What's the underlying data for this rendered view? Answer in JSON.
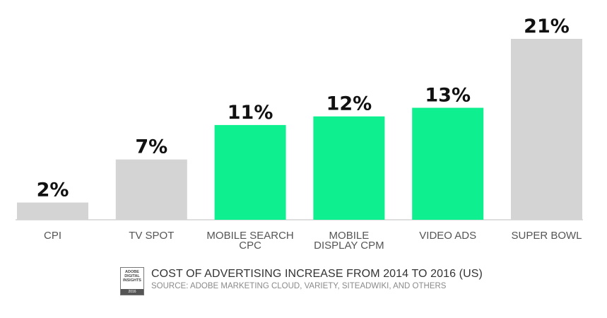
{
  "chart_data": {
    "type": "bar",
    "categories": [
      [
        "CPI"
      ],
      [
        "TV SPOT"
      ],
      [
        "MOBILE SEARCH",
        "CPC"
      ],
      [
        "MOBILE",
        "DISPLAY CPM"
      ],
      [
        "VIDEO ADS"
      ],
      [
        "SUPER BOWL"
      ]
    ],
    "values": [
      2,
      7,
      11,
      12,
      13,
      21
    ],
    "value_labels": [
      "2%",
      "7%",
      "11%",
      "12%",
      "13%",
      "21%"
    ],
    "bar_colors": [
      "#d4d4d4",
      "#d4d4d4",
      "#0ef08f",
      "#0ef08f",
      "#0ef08f",
      "#d4d4d4"
    ],
    "ylim": [
      0,
      21
    ],
    "grid": false,
    "legend": "none",
    "title": "COST OF ADVERTISING INCREASE FROM 2014 TO 2016 (US)",
    "subtitle": "SOURCE: ADOBE MARKETING CLOUD, VARIETY, SITEADWIKI, AND OTHERS"
  },
  "badge": {
    "lines": "ADOBE\nDIGITAL\nINSIGHTS",
    "year": "2016"
  },
  "colors": {
    "gray_bar": "#d4d4d4",
    "green_bar": "#0ef08f",
    "baseline": "#bdbdbd"
  }
}
